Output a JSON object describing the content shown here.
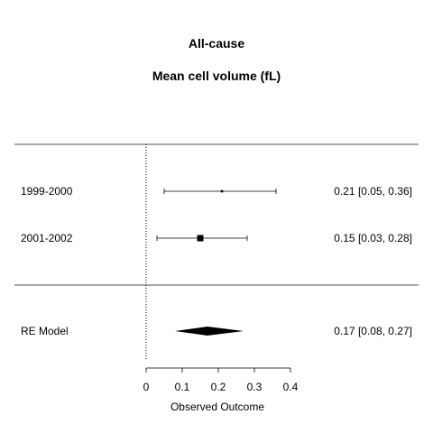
{
  "chart_data": {
    "type": "forest",
    "title": "All-cause",
    "subtitle": "Mean cell volume (fL)",
    "xlabel": "Observed Outcome",
    "xlim": [
      0,
      0.4
    ],
    "xticks": [
      "0",
      "0.1",
      "0.2",
      "0.3",
      "0.4"
    ],
    "reference_line": 0,
    "studies": [
      {
        "label": "1999-2000",
        "estimate": 0.21,
        "ci_low": 0.05,
        "ci_high": 0.36,
        "weight": "small",
        "text": "0.21 [0.05, 0.36]"
      },
      {
        "label": "2001-2002",
        "estimate": 0.15,
        "ci_low": 0.03,
        "ci_high": 0.28,
        "weight": "large",
        "text": "0.15 [0.03, 0.28]"
      }
    ],
    "summary": {
      "label": "RE Model",
      "estimate": 0.17,
      "ci_low": 0.08,
      "ci_high": 0.27,
      "text": "0.17 [0.08, 0.27]"
    },
    "colors": {
      "marks": "#000000",
      "lines": "#555555"
    }
  }
}
